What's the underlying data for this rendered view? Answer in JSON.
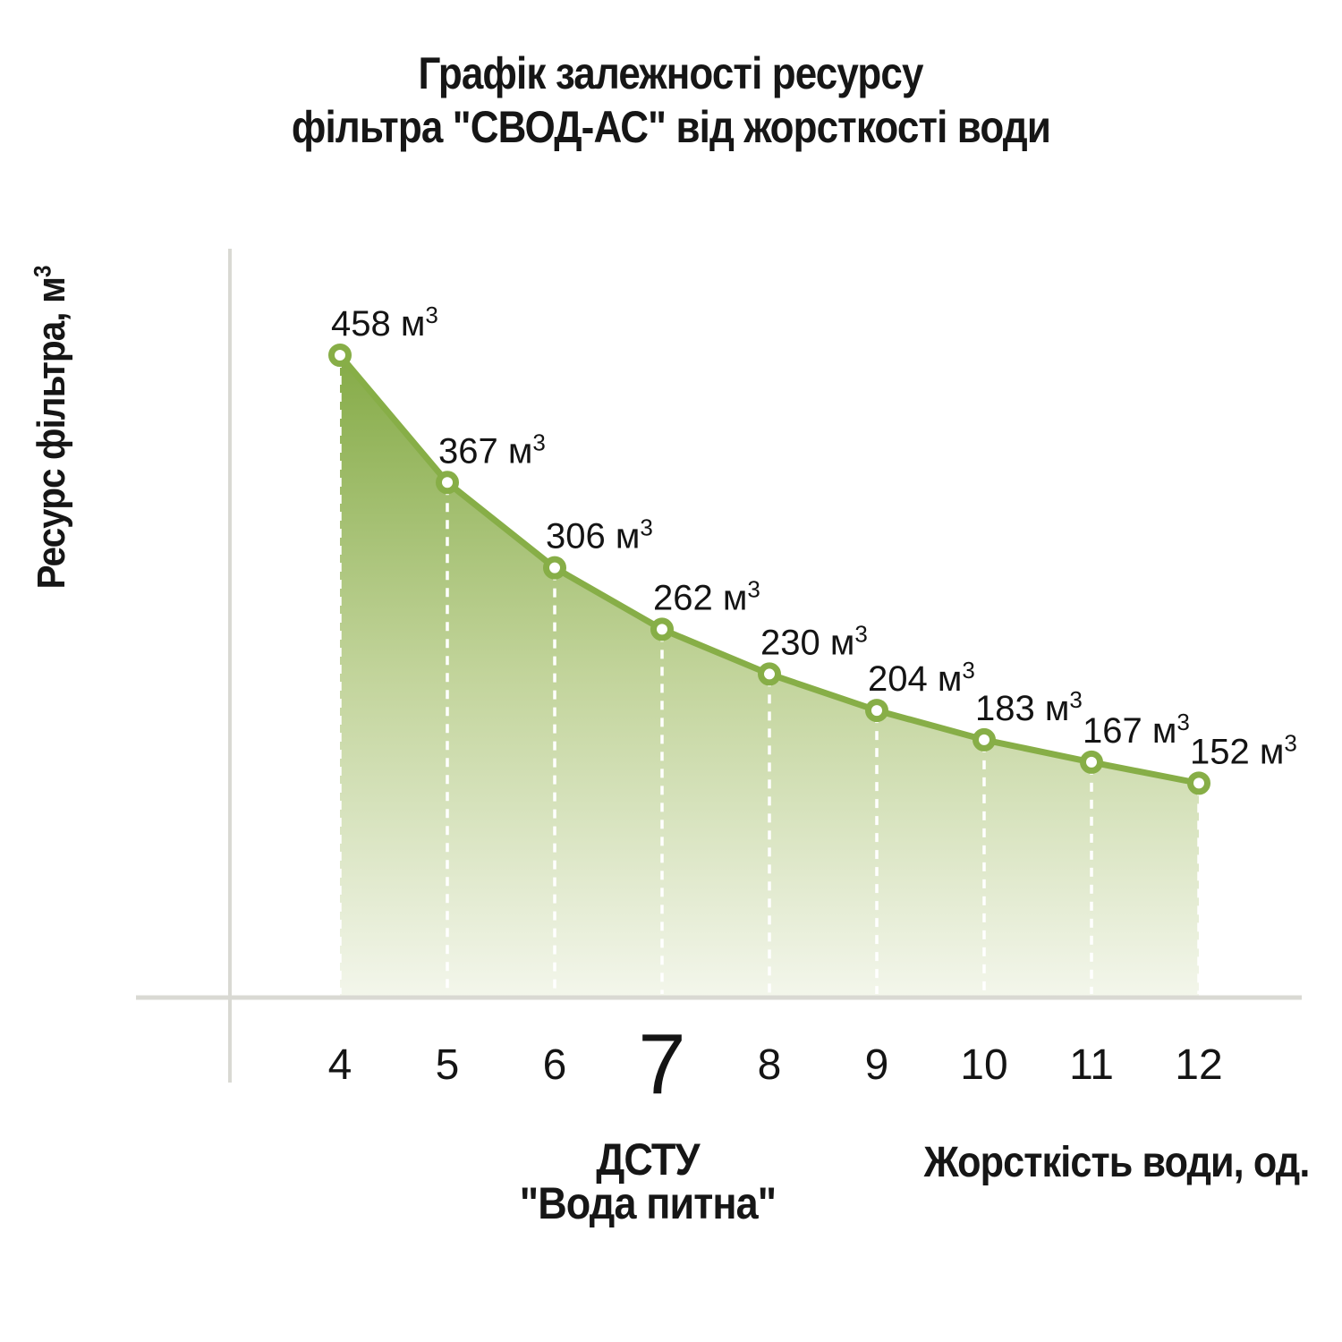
{
  "title": {
    "line1": "Графік залежності ресурсу",
    "line2": "фільтра \"СВОД-АС\" від жорсткості води"
  },
  "y_axis": {
    "label_base": "Ресурс фільтра, м",
    "label_sup": "3"
  },
  "x_axis": {
    "label": "Жорсткість води, од.",
    "note_line1": "ДСТУ",
    "note_line2": "\"Вода питна\"",
    "emphasized_tick": "7"
  },
  "chart_data": {
    "type": "area",
    "title": "Графік залежності ресурсу фільтра \"СВОД-АС\" від жорсткості води",
    "xlabel": "Жорсткість води, од.",
    "ylabel": "Ресурс фільтра, м³",
    "categories": [
      "4",
      "5",
      "6",
      "7",
      "8",
      "9",
      "10",
      "11",
      "12"
    ],
    "values": [
      458,
      367,
      306,
      262,
      230,
      204,
      183,
      167,
      152
    ],
    "unit_base": "м",
    "unit_sup": "3",
    "ylim": [
      0,
      500
    ],
    "grid": false,
    "legend": "none",
    "marker": "open-circle",
    "annotation_under_tick_7": "ДСТУ \"Вода питна\"",
    "colors": {
      "line": "#87AE47",
      "marker_ring": "#87AE47",
      "marker_fill": "#FFFFFF",
      "fill_top": "#85AB47",
      "fill_mid": "#C2D49B",
      "fill_bottom": "#F3F6EB",
      "axis": "#D9D9D3",
      "guide_dash": "#FFFFFF",
      "text": "#141414"
    }
  }
}
